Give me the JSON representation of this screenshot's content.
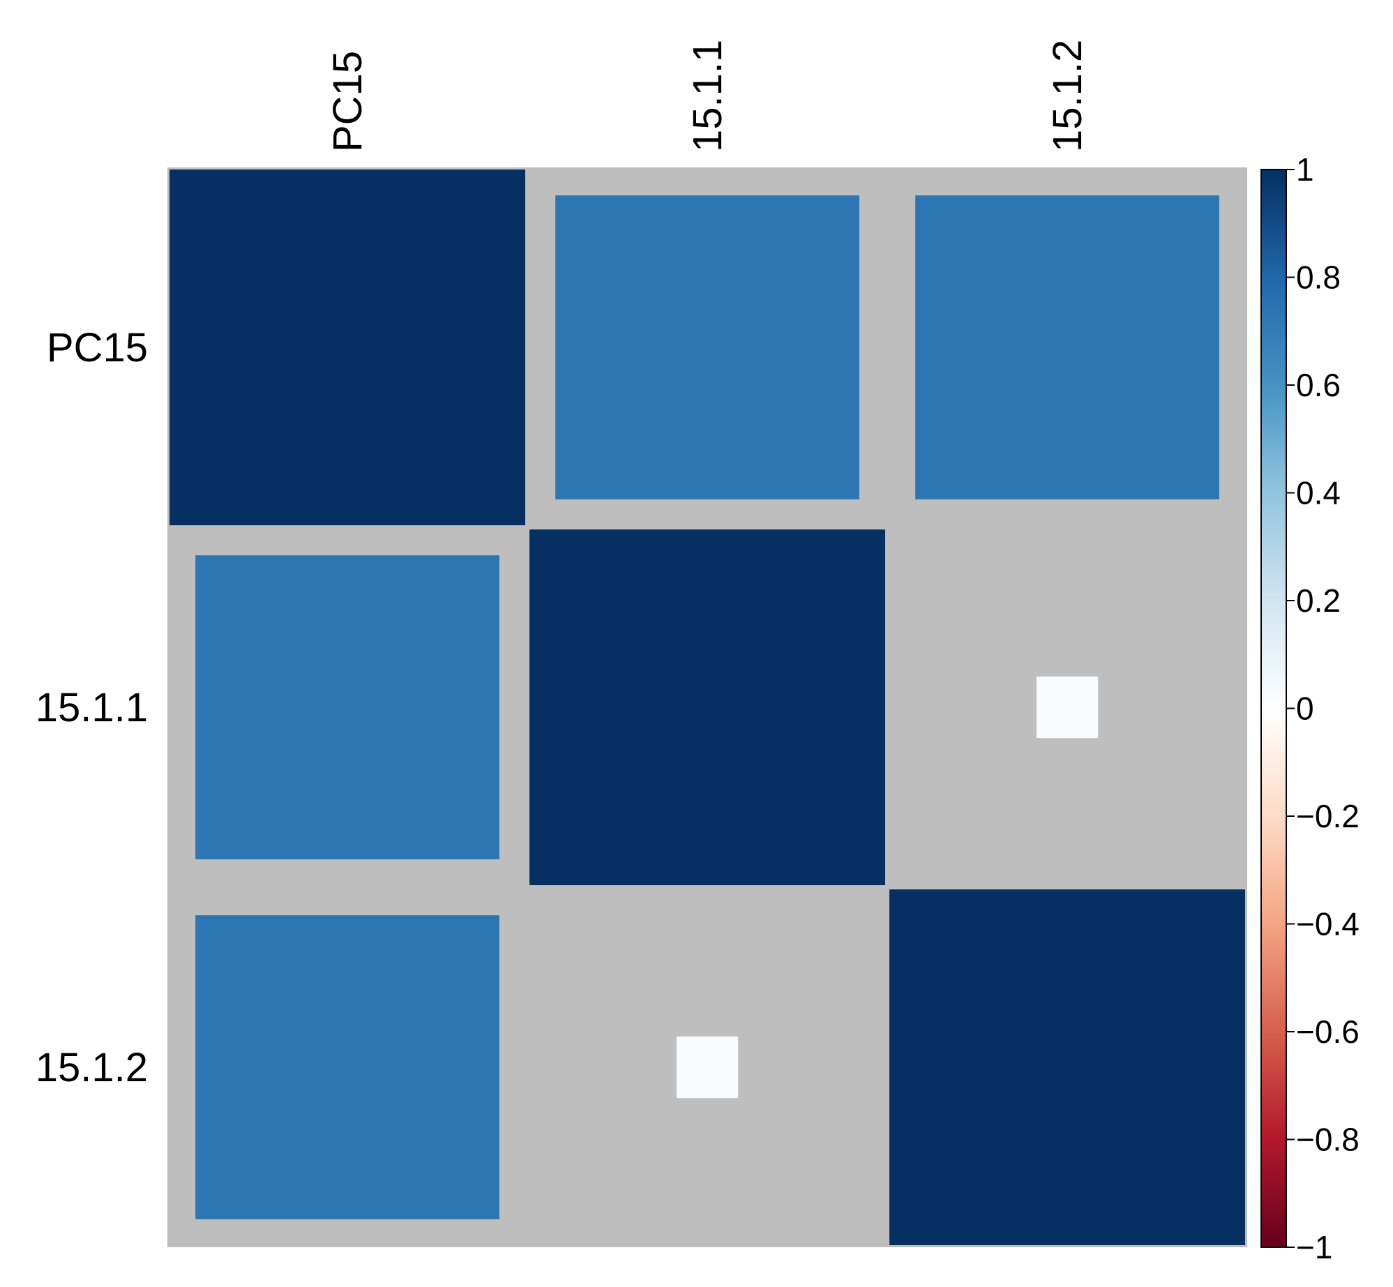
{
  "chart_data": {
    "type": "heatmap",
    "subtype": "correlation-matrix",
    "variables": [
      "PC15",
      "15.1.1",
      "15.1.2"
    ],
    "matrix": [
      [
        1.0,
        0.73,
        0.73
      ],
      [
        0.73,
        1.0,
        0.03
      ],
      [
        0.73,
        0.03,
        1.0
      ]
    ],
    "value_encoding": "square size and color",
    "colorbar": {
      "range": [
        -1,
        1
      ],
      "ticks": [
        "1",
        "0.8",
        "0.6",
        "0.4",
        "0.2",
        "0",
        "−0.2",
        "−0.4",
        "−0.6",
        "−0.8",
        "−1"
      ],
      "tick_values": [
        1,
        0.8,
        0.6,
        0.4,
        0.2,
        0,
        -0.2,
        -0.4,
        -0.6,
        -0.8,
        -1
      ],
      "stops": [
        {
          "value": -1,
          "color": "#67001f"
        },
        {
          "value": -0.8,
          "color": "#b2182b"
        },
        {
          "value": -0.6,
          "color": "#d6604d"
        },
        {
          "value": -0.4,
          "color": "#f4a582"
        },
        {
          "value": -0.2,
          "color": "#fddbc7"
        },
        {
          "value": 0,
          "color": "#ffffff"
        },
        {
          "value": 0.2,
          "color": "#d1e5f0"
        },
        {
          "value": 0.4,
          "color": "#92c5de"
        },
        {
          "value": 0.6,
          "color": "#4393c3"
        },
        {
          "value": 0.8,
          "color": "#2166ac"
        },
        {
          "value": 1,
          "color": "#053061"
        }
      ]
    },
    "background_color": "#bebebe",
    "grid": false,
    "legend_position": "right"
  }
}
